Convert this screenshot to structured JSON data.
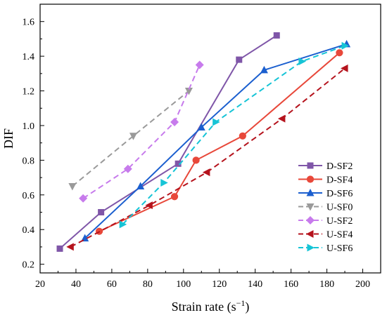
{
  "chart_data": {
    "type": "line",
    "xlabel": "Strain rate (s",
    "xlabel_sup": "−1",
    "xlabel_close": ")",
    "ylabel": "DIF",
    "xlim": [
      20,
      210
    ],
    "ylim": [
      0.15,
      1.7
    ],
    "x_ticks": [
      20,
      40,
      60,
      80,
      100,
      120,
      140,
      160,
      180,
      200
    ],
    "y_ticks": [
      0.2,
      0.4,
      0.6,
      0.8,
      1.0,
      1.2,
      1.4,
      1.6
    ],
    "y_tick_labels": [
      "0.2",
      "0.4",
      "0.6",
      "0.8",
      "1.0",
      "1.2",
      "1.4",
      "1.6"
    ],
    "legend_position": "bottom-right",
    "grid": false,
    "series": [
      {
        "name": "D-SF2",
        "color": "#7f56a8",
        "dashed": false,
        "marker": "square",
        "x": [
          31,
          54,
          97,
          131,
          152
        ],
        "y": [
          0.29,
          0.5,
          0.78,
          1.38,
          1.52
        ]
      },
      {
        "name": "D-SF4",
        "color": "#e8483a",
        "dashed": false,
        "marker": "circle",
        "x": [
          53,
          95,
          107,
          133,
          187
        ],
        "y": [
          0.39,
          0.59,
          0.8,
          0.94,
          1.42
        ]
      },
      {
        "name": "D-SF6",
        "color": "#1b5fcf",
        "dashed": false,
        "marker": "triangle-up",
        "x": [
          45,
          76,
          110,
          145,
          191
        ],
        "y": [
          0.35,
          0.65,
          0.99,
          1.32,
          1.47
        ]
      },
      {
        "name": "U-SF0",
        "color": "#9a9a9a",
        "dashed": true,
        "marker": "triangle-down",
        "x": [
          38,
          72,
          103
        ],
        "y": [
          0.65,
          0.94,
          1.2
        ]
      },
      {
        "name": "U-SF2",
        "color": "#c77bec",
        "dashed": true,
        "marker": "diamond",
        "x": [
          44,
          69,
          95,
          109
        ],
        "y": [
          0.58,
          0.75,
          1.02,
          1.35
        ]
      },
      {
        "name": "U-SF4",
        "color": "#b5131d",
        "dashed": true,
        "marker": "triangle-left",
        "x": [
          37,
          81,
          113,
          155,
          190
        ],
        "y": [
          0.3,
          0.54,
          0.73,
          1.04,
          1.33
        ]
      },
      {
        "name": "U-SF6",
        "color": "#16c4d6",
        "dashed": true,
        "marker": "triangle-right",
        "x": [
          66,
          89,
          118,
          166,
          190
        ],
        "y": [
          0.43,
          0.67,
          1.02,
          1.37,
          1.46
        ]
      }
    ]
  }
}
